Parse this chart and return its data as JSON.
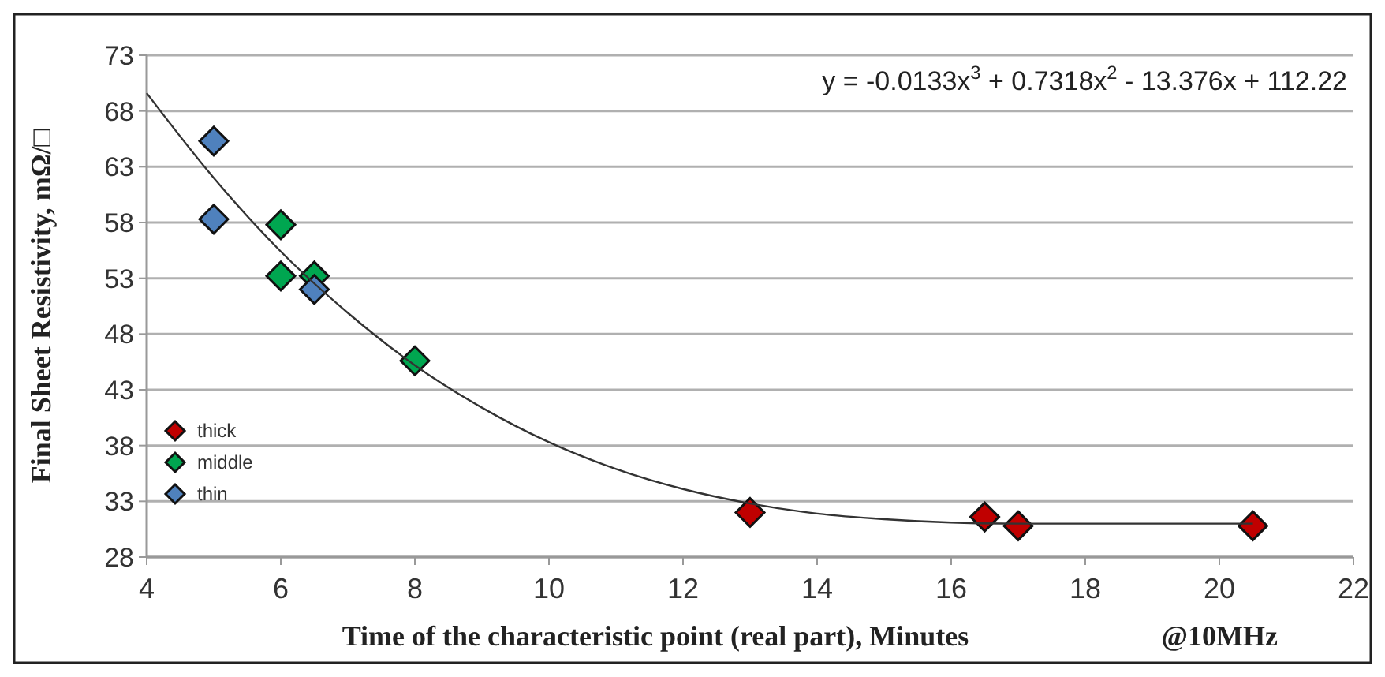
{
  "chart_data": {
    "type": "scatter",
    "xlabel": "Time of the characteristic point (real part), Minutes",
    "ylabel": "Final Sheet Resistivity, mΩ/□",
    "xlim": [
      4,
      22
    ],
    "xticks": [
      4,
      6,
      8,
      10,
      12,
      14,
      16,
      18,
      20,
      22
    ],
    "ylim": [
      28,
      73
    ],
    "yticks": [
      28,
      33,
      38,
      43,
      48,
      53,
      58,
      63,
      68,
      73
    ],
    "grid": "y",
    "legend": "bottom left",
    "marker": "diamond",
    "annotations": [
      "y = -0.0133x$^{3}$ + 0.7318x$^{2}$ - 13.376x + 112.22",
      "@10MHz"
    ],
    "series": [
      {
        "name": "thick",
        "color": "#c00000",
        "x": [
          13,
          16.5,
          17,
          20.5
        ],
        "values": [
          32.0,
          31.6,
          30.8,
          30.8
        ]
      },
      {
        "name": "middle",
        "color": "#00a650",
        "x": [
          6,
          6,
          6.5,
          8
        ],
        "values": [
          57.8,
          53.2,
          53.2,
          45.6
        ]
      },
      {
        "name": "thin",
        "color": "#4f81bd",
        "x": [
          5,
          5,
          6.5
        ],
        "values": [
          65.3,
          58.3,
          52.0
        ]
      },
      {
        "type": "line",
        "color": "#333333",
        "marker": "none",
        "x": [
          4,
          5,
          6,
          7,
          8,
          9,
          10,
          11,
          12,
          13,
          14,
          15,
          16,
          17,
          18,
          19,
          20,
          20.5
        ],
        "values": [
          69.6,
          62.0,
          55.4,
          49.9,
          45.2,
          41.4,
          38.3,
          35.9,
          34.1,
          32.8,
          31.9,
          31.4,
          31.1,
          31.0,
          31.0,
          31.0,
          31.0,
          31.0
        ]
      }
    ]
  }
}
